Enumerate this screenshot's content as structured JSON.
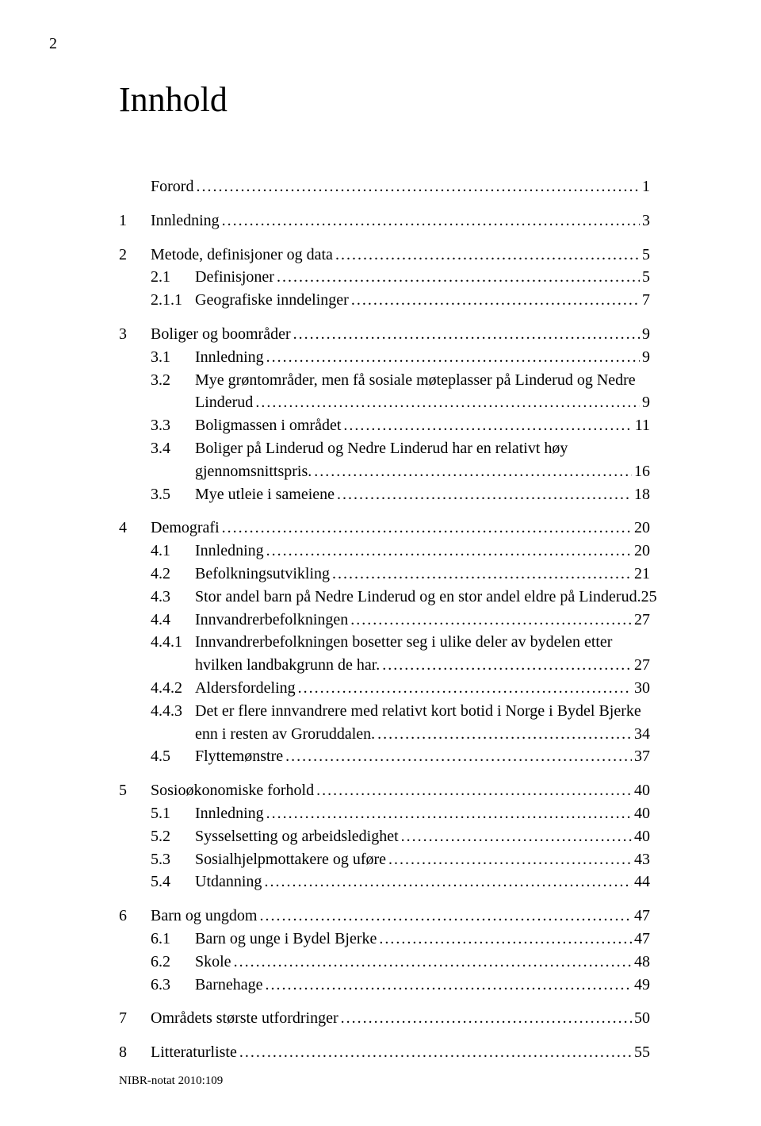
{
  "page_number_top": "2",
  "title": "Innhold",
  "footer": "NIBR-notat 2010:109",
  "typography": {
    "font_family": "Garamond, Times New Roman, serif",
    "title_fontsize_pt": 33,
    "body_fontsize_pt": 15,
    "footer_fontsize_pt": 11,
    "text_color": "#000000",
    "background_color": "#ffffff"
  },
  "toc": [
    {
      "group": [
        {
          "lvl": 1,
          "num": "",
          "label": "Forord",
          "page": "1"
        }
      ]
    },
    {
      "group": [
        {
          "lvl": 1,
          "num": "1",
          "label": "Innledning",
          "page": "3"
        }
      ]
    },
    {
      "group": [
        {
          "lvl": 1,
          "num": "2",
          "label": "Metode, definisjoner og data",
          "page": "5"
        },
        {
          "lvl": 2,
          "num": "2.1",
          "label": "Definisjoner",
          "page": "5"
        },
        {
          "lvl": 2,
          "num": "2.1.1",
          "label": "Geografiske inndelinger",
          "page": "7"
        }
      ]
    },
    {
      "group": [
        {
          "lvl": 1,
          "num": "3",
          "label": "Boliger og boområder",
          "page": "9"
        },
        {
          "lvl": 2,
          "num": "3.1",
          "label": "Innledning",
          "page": "9"
        },
        {
          "lvl": 2,
          "num": "3.2",
          "label": "Mye grøntområder, men få sosiale møteplasser på Linderud og Nedre",
          "cont": "Linderud",
          "page": "9"
        },
        {
          "lvl": 2,
          "num": "3.3",
          "label": "Boligmassen i området",
          "page": "11"
        },
        {
          "lvl": 2,
          "num": "3.4",
          "label": "Boliger på Linderud og Nedre Linderud har en relativt høy",
          "cont": "gjennomsnittspris.",
          "page": "16"
        },
        {
          "lvl": 2,
          "num": "3.5",
          "label": "Mye utleie i sameiene",
          "page": "18"
        }
      ]
    },
    {
      "group": [
        {
          "lvl": 1,
          "num": "4",
          "label": "Demografi",
          "page": "20"
        },
        {
          "lvl": 2,
          "num": "4.1",
          "label": "Innledning",
          "page": "20"
        },
        {
          "lvl": 2,
          "num": "4.2",
          "label": "Befolkningsutvikling",
          "page": "21"
        },
        {
          "lvl": 2,
          "num": "4.3",
          "label": "Stor andel barn på Nedre Linderud og en stor andel eldre på Linderud.",
          "page": "25",
          "tight": true
        },
        {
          "lvl": 2,
          "num": "4.4",
          "label": "Innvandrerbefolkningen",
          "page": "27"
        },
        {
          "lvl": 3,
          "num": "4.4.1",
          "label": "Innvandrerbefolkningen bosetter seg i ulike deler av bydelen etter",
          "cont": "hvilken landbakgrunn de har.",
          "page": "27"
        },
        {
          "lvl": 3,
          "num": "4.4.2",
          "label": "Aldersfordeling",
          "page": "30"
        },
        {
          "lvl": 3,
          "num": "4.4.3",
          "label": "Det er flere innvandrere med relativt kort botid i Norge i Bydel Bjerke",
          "cont": "enn i resten av Groruddalen.",
          "page": "34"
        },
        {
          "lvl": 2,
          "num": "4.5",
          "label": "Flyttemønstre",
          "page": "37"
        }
      ]
    },
    {
      "group": [
        {
          "lvl": 1,
          "num": "5",
          "label": "Sosioøkonomiske forhold",
          "page": "40"
        },
        {
          "lvl": 2,
          "num": "5.1",
          "label": "Innledning",
          "page": "40"
        },
        {
          "lvl": 2,
          "num": "5.2",
          "label": "Sysselsetting og arbeidsledighet",
          "page": "40"
        },
        {
          "lvl": 2,
          "num": "5.3",
          "label": "Sosialhjelpmottakere og uføre",
          "page": "43"
        },
        {
          "lvl": 2,
          "num": "5.4",
          "label": "Utdanning",
          "page": "44"
        }
      ]
    },
    {
      "group": [
        {
          "lvl": 1,
          "num": "6",
          "label": "Barn og ungdom",
          "page": "47"
        },
        {
          "lvl": 2,
          "num": "6.1",
          "label": "Barn og unge i Bydel Bjerke",
          "page": "47"
        },
        {
          "lvl": 2,
          "num": "6.2",
          "label": "Skole",
          "page": "48"
        },
        {
          "lvl": 2,
          "num": "6.3",
          "label": "Barnehage",
          "page": "49"
        }
      ]
    },
    {
      "group": [
        {
          "lvl": 1,
          "num": "7",
          "label": "Områdets største utfordringer",
          "page": "50"
        }
      ]
    },
    {
      "group": [
        {
          "lvl": 1,
          "num": "8",
          "label": "Litteraturliste",
          "page": "55"
        }
      ]
    }
  ]
}
